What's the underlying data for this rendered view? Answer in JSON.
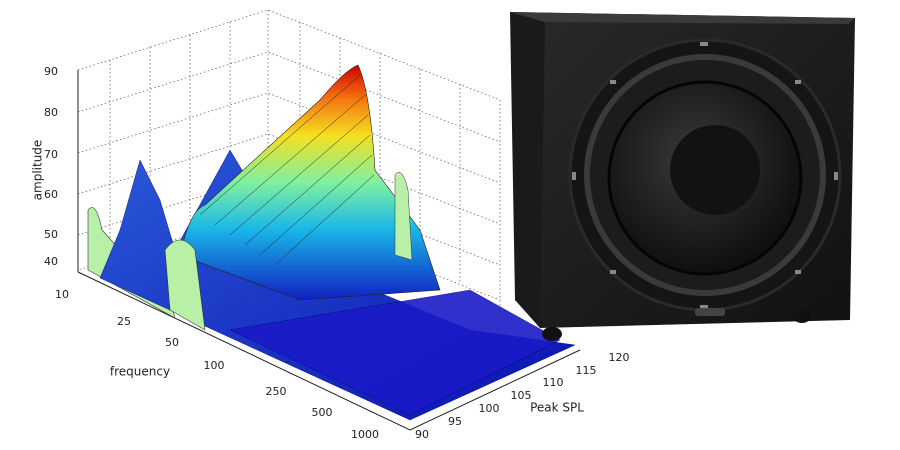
{
  "plot": {
    "z_label": "amplitude",
    "x_label": "frequency",
    "y_label": "Peak SPL",
    "z_ticks": [
      "90",
      "80",
      "70",
      "60",
      "50",
      "40"
    ],
    "x_ticks": [
      "10",
      "25",
      "50",
      "100",
      "250",
      "500",
      "1000"
    ],
    "y_ticks": [
      "90",
      "95",
      "100",
      "105",
      "110",
      "115",
      "120"
    ]
  }
}
